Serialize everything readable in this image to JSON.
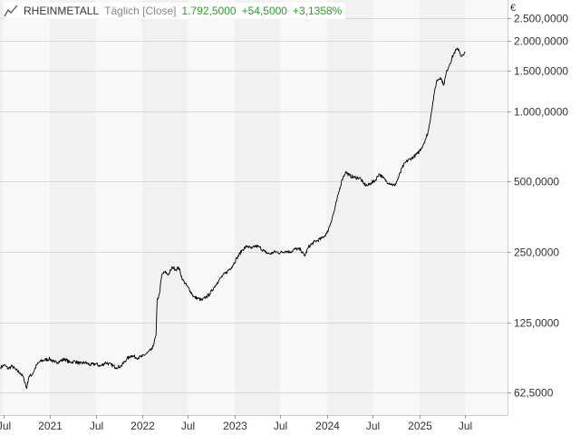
{
  "header": {
    "name": "RHEINMETALL",
    "mode": "Täglich [Close]",
    "price": "1.792,5000",
    "change": "+54,5000",
    "change_pct": "+3,1358%",
    "accent_color": "#2e9e2e",
    "icon": "line-chart-icon"
  },
  "chart_data": {
    "type": "line",
    "title": "RHEINMETALL",
    "currency": "€",
    "y_scale": "log",
    "ylim": [
      50000,
      3000000
    ],
    "grid": true,
    "y_ticks": [
      {
        "value": 62500,
        "label": "62,5000"
      },
      {
        "value": 125000,
        "label": "125,0000"
      },
      {
        "value": 250000,
        "label": "250,0000"
      },
      {
        "value": 500000,
        "label": "500,0000"
      },
      {
        "value": 1000000,
        "label": "1.000,0000"
      },
      {
        "value": 1500000,
        "label": "1.500,0000"
      },
      {
        "value": 2000000,
        "label": "2.000,0000"
      },
      {
        "value": 2500000,
        "label": "2.500,0000"
      }
    ],
    "x_ticks": [
      {
        "date": "2020-07-01",
        "label": "Jul"
      },
      {
        "date": "2021-01-01",
        "label": "2021"
      },
      {
        "date": "2021-07-01",
        "label": "Jul"
      },
      {
        "date": "2022-01-01",
        "label": "2022"
      },
      {
        "date": "2022-07-01",
        "label": "Jul"
      },
      {
        "date": "2023-01-01",
        "label": "2023"
      },
      {
        "date": "2023-07-01",
        "label": "Jul"
      },
      {
        "date": "2024-01-01",
        "label": "2024"
      },
      {
        "date": "2024-07-01",
        "label": "Jul"
      },
      {
        "date": "2025-01-01",
        "label": "2025"
      },
      {
        "date": "2025-07-01",
        "label": "Jul"
      }
    ],
    "xlim": [
      "2020-06-18",
      "2025-12-15"
    ],
    "series": [
      {
        "name": "RHEINMETALL",
        "color": "#000000",
        "points": [
          [
            "2020-06-20",
            80000
          ],
          [
            "2020-07-05",
            82000
          ],
          [
            "2020-07-20",
            79000
          ],
          [
            "2020-08-05",
            81000
          ],
          [
            "2020-08-20",
            78000
          ],
          [
            "2020-09-05",
            76000
          ],
          [
            "2020-09-20",
            72000
          ],
          [
            "2020-10-01",
            65000
          ],
          [
            "2020-10-10",
            73000
          ],
          [
            "2020-10-25",
            75000
          ],
          [
            "2020-11-10",
            82000
          ],
          [
            "2020-11-25",
            85000
          ],
          [
            "2020-12-10",
            86000
          ],
          [
            "2021-01-01",
            87000
          ],
          [
            "2021-01-20",
            84000
          ],
          [
            "2021-02-10",
            85000
          ],
          [
            "2021-03-01",
            87000
          ],
          [
            "2021-03-20",
            84000
          ],
          [
            "2021-04-10",
            85000
          ],
          [
            "2021-05-01",
            83000
          ],
          [
            "2021-05-20",
            84000
          ],
          [
            "2021-06-10",
            82000
          ],
          [
            "2021-07-01",
            83000
          ],
          [
            "2021-07-20",
            81000
          ],
          [
            "2021-08-10",
            84000
          ],
          [
            "2021-09-01",
            82000
          ],
          [
            "2021-09-20",
            80000
          ],
          [
            "2021-10-10",
            81000
          ],
          [
            "2021-11-01",
            87000
          ],
          [
            "2021-11-20",
            90000
          ],
          [
            "2021-12-10",
            88000
          ],
          [
            "2022-01-01",
            89000
          ],
          [
            "2022-01-20",
            92000
          ],
          [
            "2022-02-10",
            96000
          ],
          [
            "2022-02-25",
            110000
          ],
          [
            "2022-03-01",
            155000
          ],
          [
            "2022-03-10",
            165000
          ],
          [
            "2022-03-20",
            200000
          ],
          [
            "2022-04-01",
            205000
          ],
          [
            "2022-04-15",
            200000
          ],
          [
            "2022-05-01",
            215000
          ],
          [
            "2022-05-15",
            210000
          ],
          [
            "2022-05-25",
            215000
          ],
          [
            "2022-06-10",
            190000
          ],
          [
            "2022-06-25",
            180000
          ],
          [
            "2022-07-10",
            170000
          ],
          [
            "2022-07-25",
            160000
          ],
          [
            "2022-08-10",
            158000
          ],
          [
            "2022-08-25",
            155000
          ],
          [
            "2022-09-10",
            160000
          ],
          [
            "2022-09-25",
            165000
          ],
          [
            "2022-10-10",
            175000
          ],
          [
            "2022-10-25",
            185000
          ],
          [
            "2022-11-10",
            195000
          ],
          [
            "2022-12-01",
            205000
          ],
          [
            "2022-12-20",
            215000
          ],
          [
            "2023-01-10",
            235000
          ],
          [
            "2023-02-01",
            255000
          ],
          [
            "2023-02-20",
            265000
          ],
          [
            "2023-03-10",
            258000
          ],
          [
            "2023-03-25",
            265000
          ],
          [
            "2023-04-10",
            262000
          ],
          [
            "2023-05-01",
            250000
          ],
          [
            "2023-05-20",
            245000
          ],
          [
            "2023-06-10",
            250000
          ],
          [
            "2023-07-01",
            248000
          ],
          [
            "2023-07-20",
            252000
          ],
          [
            "2023-08-10",
            250000
          ],
          [
            "2023-09-01",
            258000
          ],
          [
            "2023-09-20",
            255000
          ],
          [
            "2023-10-05",
            240000
          ],
          [
            "2023-10-20",
            262000
          ],
          [
            "2023-11-10",
            275000
          ],
          [
            "2023-11-25",
            280000
          ],
          [
            "2023-12-10",
            285000
          ],
          [
            "2024-01-01",
            300000
          ],
          [
            "2024-01-15",
            330000
          ],
          [
            "2024-02-01",
            380000
          ],
          [
            "2024-02-15",
            440000
          ],
          [
            "2024-03-01",
            510000
          ],
          [
            "2024-03-15",
            550000
          ],
          [
            "2024-04-01",
            530000
          ],
          [
            "2024-04-20",
            520000
          ],
          [
            "2024-05-10",
            520000
          ],
          [
            "2024-05-25",
            490000
          ],
          [
            "2024-06-10",
            480000
          ],
          [
            "2024-06-25",
            495000
          ],
          [
            "2024-07-10",
            505000
          ],
          [
            "2024-07-25",
            540000
          ],
          [
            "2024-08-10",
            520000
          ],
          [
            "2024-08-25",
            500000
          ],
          [
            "2024-09-10",
            490000
          ],
          [
            "2024-09-25",
            480000
          ],
          [
            "2024-10-10",
            520000
          ],
          [
            "2024-10-25",
            575000
          ],
          [
            "2024-11-10",
            610000
          ],
          [
            "2024-11-25",
            625000
          ],
          [
            "2024-12-10",
            640000
          ],
          [
            "2024-12-25",
            660000
          ],
          [
            "2025-01-10",
            700000
          ],
          [
            "2025-01-25",
            760000
          ],
          [
            "2025-02-05",
            820000
          ],
          [
            "2025-02-15",
            960000
          ],
          [
            "2025-03-01",
            1200000
          ],
          [
            "2025-03-10",
            1350000
          ],
          [
            "2025-03-25",
            1400000
          ],
          [
            "2025-04-07",
            1300000
          ],
          [
            "2025-04-20",
            1500000
          ],
          [
            "2025-05-01",
            1600000
          ],
          [
            "2025-05-15",
            1750000
          ],
          [
            "2025-05-25",
            1830000
          ],
          [
            "2025-06-05",
            1850000
          ],
          [
            "2025-06-15",
            1720000
          ],
          [
            "2025-06-25",
            1740000
          ],
          [
            "2025-07-01",
            1792500
          ]
        ]
      }
    ]
  }
}
